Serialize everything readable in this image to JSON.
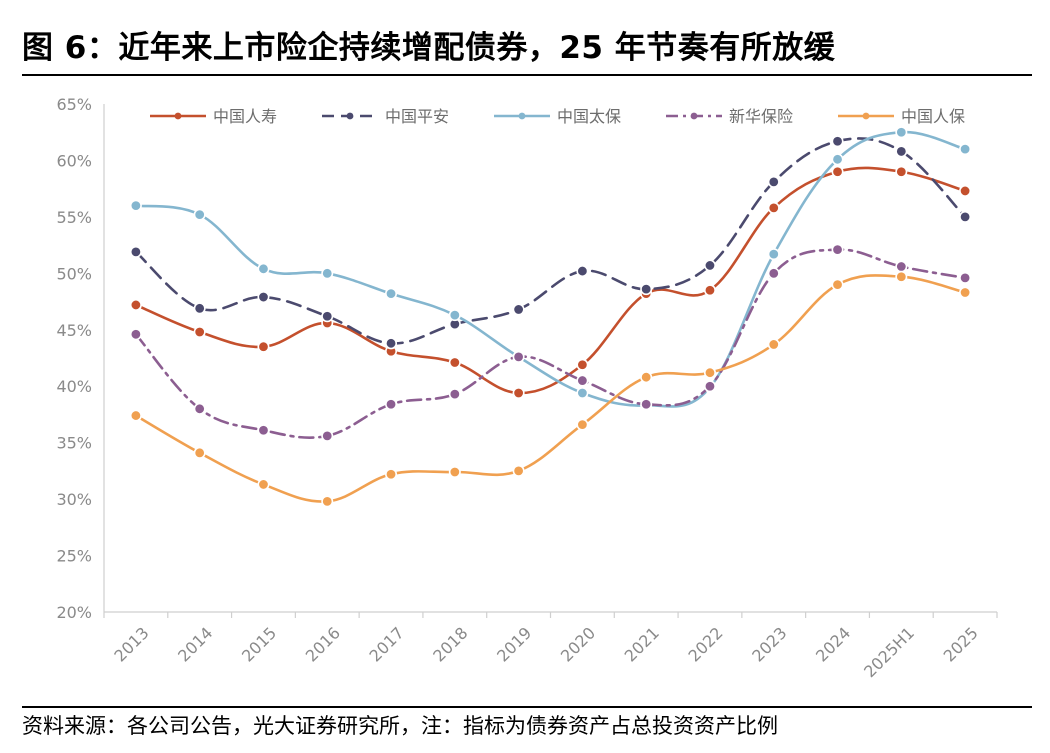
{
  "title": "图 6：近年来上市险企持续增配债券，25 年节奏有所放缓",
  "source": "资料来源：各公司公告，光大证券研究所，注：指标为债券资产占总投资资产比例",
  "chart_data": {
    "type": "line",
    "categories": [
      "2013",
      "2014",
      "2015",
      "2016",
      "2017",
      "2018",
      "2019",
      "2020",
      "2021",
      "2022",
      "2023",
      "2024",
      "2025H1",
      "2025"
    ],
    "ylim": [
      20,
      65
    ],
    "yticks": [
      20,
      25,
      30,
      35,
      40,
      45,
      50,
      55,
      60,
      65
    ],
    "ytick_labels": [
      "20%",
      "25%",
      "30%",
      "35%",
      "40%",
      "45%",
      "50%",
      "55%",
      "60%",
      "65%"
    ],
    "legend_position": "top",
    "series": [
      {
        "name": "中国人寿",
        "color": "#C4502D",
        "dash": "solid",
        "values": [
          47.2,
          44.8,
          43.5,
          45.6,
          43.1,
          42.1,
          39.4,
          41.9,
          48.2,
          48.5,
          55.8,
          59.0,
          59.0,
          57.3
        ]
      },
      {
        "name": "中国平安",
        "color": "#4B4A6E",
        "dash": "dash",
        "values": [
          51.9,
          46.9,
          47.9,
          46.2,
          43.8,
          45.5,
          46.8,
          50.2,
          48.6,
          50.7,
          58.1,
          61.7,
          60.8,
          55.0
        ]
      },
      {
        "name": "中国太保",
        "color": "#84B6CF",
        "dash": "solid",
        "values": [
          56.0,
          55.2,
          50.4,
          50.0,
          48.2,
          46.3,
          42.6,
          39.4,
          38.3,
          39.9,
          51.7,
          60.1,
          62.5,
          61.0
        ]
      },
      {
        "name": "新华保险",
        "color": "#8C5E91",
        "dash": "dashdot",
        "values": [
          44.6,
          38.0,
          36.1,
          35.6,
          38.4,
          39.3,
          42.6,
          40.5,
          38.4,
          40.0,
          50.0,
          52.1,
          50.6,
          49.6
        ]
      },
      {
        "name": "中国人保",
        "color": "#F0A050",
        "dash": "solid",
        "values": [
          37.4,
          34.1,
          31.3,
          29.8,
          32.2,
          32.4,
          32.5,
          36.6,
          40.8,
          41.2,
          43.7,
          49.0,
          49.7,
          48.3
        ]
      }
    ]
  }
}
